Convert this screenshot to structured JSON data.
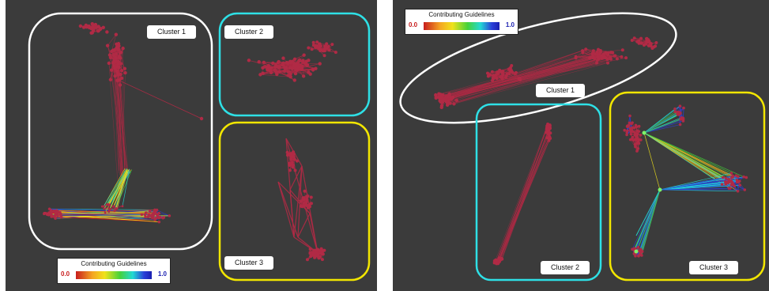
{
  "left_panel": {
    "cluster_labels": [
      "Cluster 1",
      "Cluster 2",
      "Cluster 3"
    ],
    "legend": {
      "title": "Contributing Guidelines",
      "min": "0.0",
      "max": "1.0"
    }
  },
  "right_panel": {
    "cluster_labels": [
      "Cluster 1",
      "Cluster 2",
      "Cluster 3"
    ],
    "legend": {
      "title": "Contributing Guidelines",
      "min": "0.0",
      "max": "1.0"
    }
  },
  "colors": {
    "background": "#3b3b3b",
    "node": "#b02a45",
    "cluster1_outline": "#ffffff",
    "cluster2_outline": "#2ee0e6",
    "cluster3_outline": "#f2e600"
  }
}
